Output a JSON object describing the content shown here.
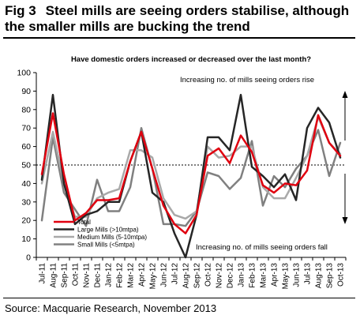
{
  "figure": {
    "number": "Fig 3",
    "title": "Steel mills are seeing orders stabilise, although the smaller mills are bucking the trend",
    "source": "Source: Macquarie Research, November 2013"
  },
  "chart_data": {
    "type": "line",
    "title": "Have domestic orders increased or decreased over the last month?",
    "xlabel": "",
    "ylabel": "",
    "ylim": [
      0,
      100
    ],
    "yticks": [
      0,
      10,
      20,
      30,
      40,
      50,
      60,
      70,
      80,
      90,
      100
    ],
    "reference_line": 50,
    "grid": false,
    "legend_position": "bottom-left",
    "x": [
      "Jul-11",
      "Aug-11",
      "Sep-11",
      "Oct-11",
      "Nov-11",
      "Dec-11",
      "Jan-12",
      "Feb-12",
      "Mar-12",
      "Apr-12",
      "May-12",
      "Jun-12",
      "Jul-12",
      "Aug-12",
      "Sep-12",
      "Oct-12",
      "Nov-12",
      "Dec-12",
      "Jan-13",
      "Feb-13",
      "Mar-13",
      "Apr-13",
      "May-13",
      "Jun-13",
      "Jul-13",
      "Aug-13",
      "Sep-13",
      "Oct-13"
    ],
    "x_tick_labels": [
      "Jul-11",
      "Aug-11",
      "Sep-11",
      "Oct-11",
      "Nov-11",
      "Dec-11",
      "Jan-12",
      "Feb-12",
      "Mar-12",
      "Apr-12",
      "May-12",
      "Jun-12",
      "Jul-12",
      "Aug-12",
      "Sep-12",
      "Oct-12",
      "Nov-12",
      "Dec-12",
      "Jan-13",
      "Feb-13",
      "Mar-13",
      "Apr-13",
      "May-13",
      "Jun-13",
      "Jul-13",
      "Aug-13",
      "Sep-13",
      "Oct-13"
    ],
    "annotations": {
      "upper": "Increasing no. of mills seeing orders rise",
      "lower": "Increasing no. of mills seeing orders fall"
    },
    "series": [
      {
        "name": "Total",
        "color": "#e0000f",
        "width": 2.5,
        "values": [
          45,
          78,
          45,
          20,
          24,
          31,
          31,
          32,
          52,
          68,
          48,
          28,
          18,
          13,
          23,
          55,
          59,
          51,
          66,
          57,
          39,
          35,
          40,
          39,
          47,
          77,
          62,
          55
        ]
      },
      {
        "name": "Large Mills (>10mtpa)",
        "color": "#262626",
        "width": 2.5,
        "values": [
          42,
          88,
          40,
          18,
          23,
          25,
          30,
          30,
          52,
          68,
          35,
          30,
          13,
          0,
          23,
          65,
          65,
          58,
          88,
          49,
          44,
          38,
          45,
          31,
          70,
          81,
          73,
          54
        ]
      },
      {
        "name": "Medium Mills (5-10mtpa)",
        "color": "#a9a9a9",
        "width": 2.5,
        "values": [
          40,
          68,
          40,
          22,
          22,
          32,
          35,
          37,
          58,
          58,
          54,
          32,
          23,
          21,
          25,
          60,
          54,
          55,
          60,
          60,
          38,
          32,
          32,
          43,
          55,
          76,
          62,
          56
        ]
      },
      {
        "name": "Small Mills (<5mtpa)",
        "color": "#808080",
        "width": 2.5,
        "values": [
          20,
          65,
          35,
          26,
          17,
          42,
          25,
          25,
          38,
          70,
          48,
          18,
          18,
          17,
          25,
          46,
          44,
          37,
          43,
          63,
          28,
          44,
          38,
          48,
          55,
          69,
          44,
          62
        ]
      }
    ]
  }
}
